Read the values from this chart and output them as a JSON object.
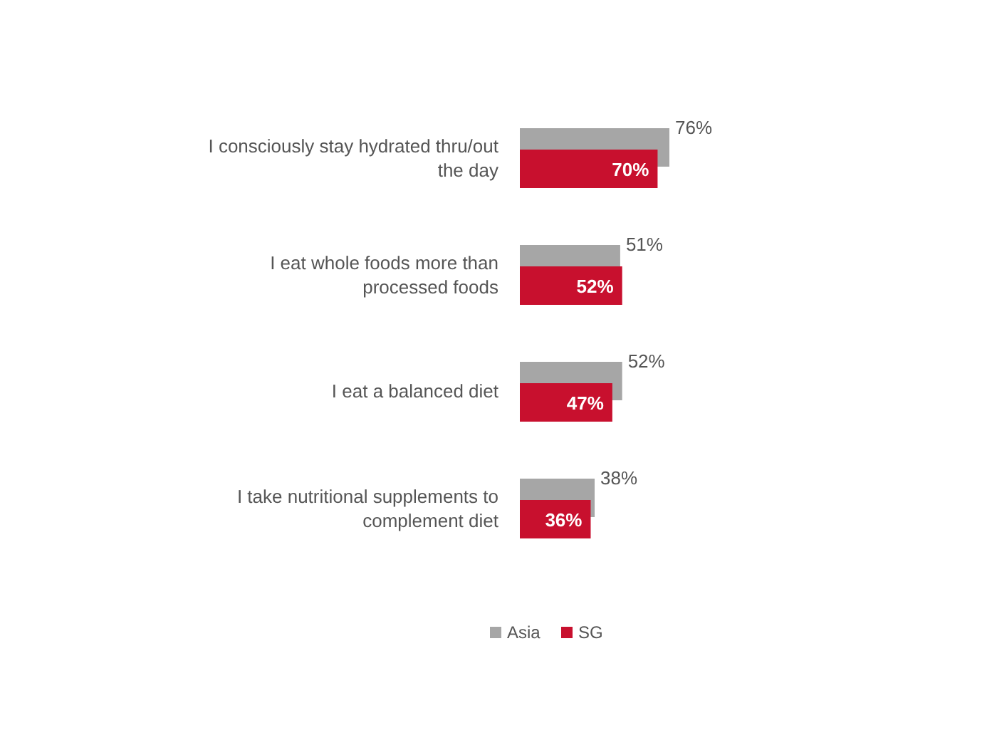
{
  "chart_data": {
    "type": "bar",
    "orientation": "horizontal",
    "categories": [
      "I consciously stay hydrated thru/out the day",
      "I eat whole foods more than processed foods",
      "I eat a balanced diet",
      "I take nutritional supplements to complement diet"
    ],
    "series": [
      {
        "name": "Asia",
        "color": "#a6a6a6",
        "values": [
          76,
          51,
          52,
          38
        ],
        "value_labels": [
          "76%",
          "51%",
          "52%",
          "38%"
        ]
      },
      {
        "name": "SG",
        "color": "#c8102e",
        "values": [
          70,
          52,
          47,
          36
        ],
        "value_labels": [
          "70%",
          "52%",
          "47%",
          "36%"
        ]
      }
    ],
    "legend": "bottom"
  }
}
